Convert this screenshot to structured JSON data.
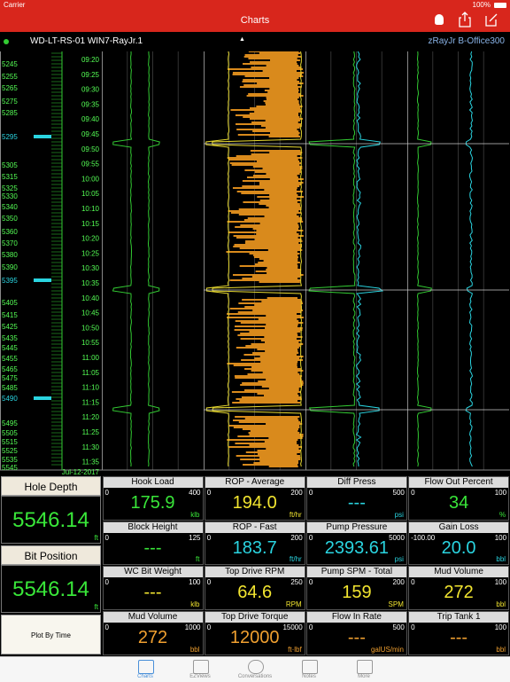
{
  "status": {
    "carrier": "Carrier",
    "battery": "100%"
  },
  "header": {
    "title": "Charts"
  },
  "well": {
    "name": "WD-LT-RS-01 WIN7-RayJr.1",
    "server": "zRayJr B-Office300"
  },
  "depths": [
    "5245",
    "5255",
    "5265",
    "5275",
    "5285",
    "5295",
    "5305",
    "5315",
    "5325",
    "5330",
    "5340",
    "5350",
    "5360",
    "5370",
    "5380",
    "5390",
    "5395",
    "5405",
    "5415",
    "5425",
    "5435",
    "5445",
    "5455",
    "5465",
    "5475",
    "5485",
    "5490",
    "5495",
    "5505",
    "5515",
    "5525",
    "5535",
    "5545"
  ],
  "times": [
    "09:20",
    "09:25",
    "09:30",
    "09:35",
    "09:40",
    "09:45",
    "09:50",
    "09:55",
    "10:00",
    "10:05",
    "10:10",
    "10:15",
    "10:20",
    "10:25",
    "10:30",
    "10:35",
    "10:40",
    "10:45",
    "10:50",
    "10:55",
    "11:00",
    "11:05",
    "11:10",
    "11:15",
    "11:20",
    "11:25",
    "11:30",
    "11:35"
  ],
  "date": "Jul-12-2017",
  "left_panel": {
    "hole_depth": {
      "label": "Hole Depth",
      "value": "5546.14",
      "unit": "ft"
    },
    "bit_position": {
      "label": "Bit Position",
      "value": "5546.14",
      "unit": "ft"
    },
    "button": "Plot By Time"
  },
  "gauges": [
    {
      "title": "Hook Load",
      "min": "0",
      "max": "400",
      "value": "175.9",
      "unit": "klb",
      "color": "#39e639"
    },
    {
      "title": "ROP - Average",
      "min": "0",
      "max": "200",
      "value": "194.0",
      "unit": "ft/hr",
      "color": "#f2e530"
    },
    {
      "title": "Diff Press",
      "min": "0",
      "max": "500",
      "value": "---",
      "unit": "psi",
      "color": "#2ad4e0"
    },
    {
      "title": "Flow Out Percent",
      "min": "0",
      "max": "100",
      "value": "34",
      "unit": "%",
      "color": "#39e639"
    },
    {
      "title": "Block Height",
      "min": "0",
      "max": "125",
      "value": "---",
      "unit": "ft",
      "color": "#39e639"
    },
    {
      "title": "ROP - Fast",
      "min": "0",
      "max": "200",
      "value": "183.7",
      "unit": "ft/hr",
      "color": "#2ad4e0"
    },
    {
      "title": "Pump Pressure",
      "min": "0",
      "max": "5000",
      "value": "2393.61",
      "unit": "psi",
      "color": "#2ad4e0"
    },
    {
      "title": "Gain Loss",
      "min": "-100.00",
      "max": "100",
      "value": "20.0",
      "unit": "bbl",
      "color": "#2ad4e0"
    },
    {
      "title": "WC Bit Weight",
      "min": "0",
      "max": "100",
      "value": "---",
      "unit": "klb",
      "color": "#f2e530"
    },
    {
      "title": "Top Drive RPM",
      "min": "0",
      "max": "250",
      "value": "64.6",
      "unit": "RPM",
      "color": "#f2e530"
    },
    {
      "title": "Pump SPM - Total",
      "min": "0",
      "max": "200",
      "value": "159",
      "unit": "SPM",
      "color": "#f2e530"
    },
    {
      "title": "Mud Volume",
      "min": "0",
      "max": "100",
      "value": "272",
      "unit": "bbl",
      "color": "#f2e530"
    },
    {
      "title": "Mud Volume",
      "min": "0",
      "max": "1000",
      "value": "272",
      "unit": "bbl",
      "color": "#f0a030"
    },
    {
      "title": "Top Drive Torque",
      "min": "0",
      "max": "15000",
      "value": "12000",
      "unit": "ft·lbf",
      "color": "#f0a030"
    },
    {
      "title": "Flow In Rate",
      "min": "0",
      "max": "500",
      "value": "---",
      "unit": "galUS/min",
      "color": "#f0a030"
    },
    {
      "title": "Trip Tank 1",
      "min": "0",
      "max": "100",
      "value": "---",
      "unit": "bbl",
      "color": "#f0a030"
    }
  ],
  "tabs": [
    "Charts",
    "EZViews",
    "Conversations",
    "Notes",
    "More"
  ]
}
